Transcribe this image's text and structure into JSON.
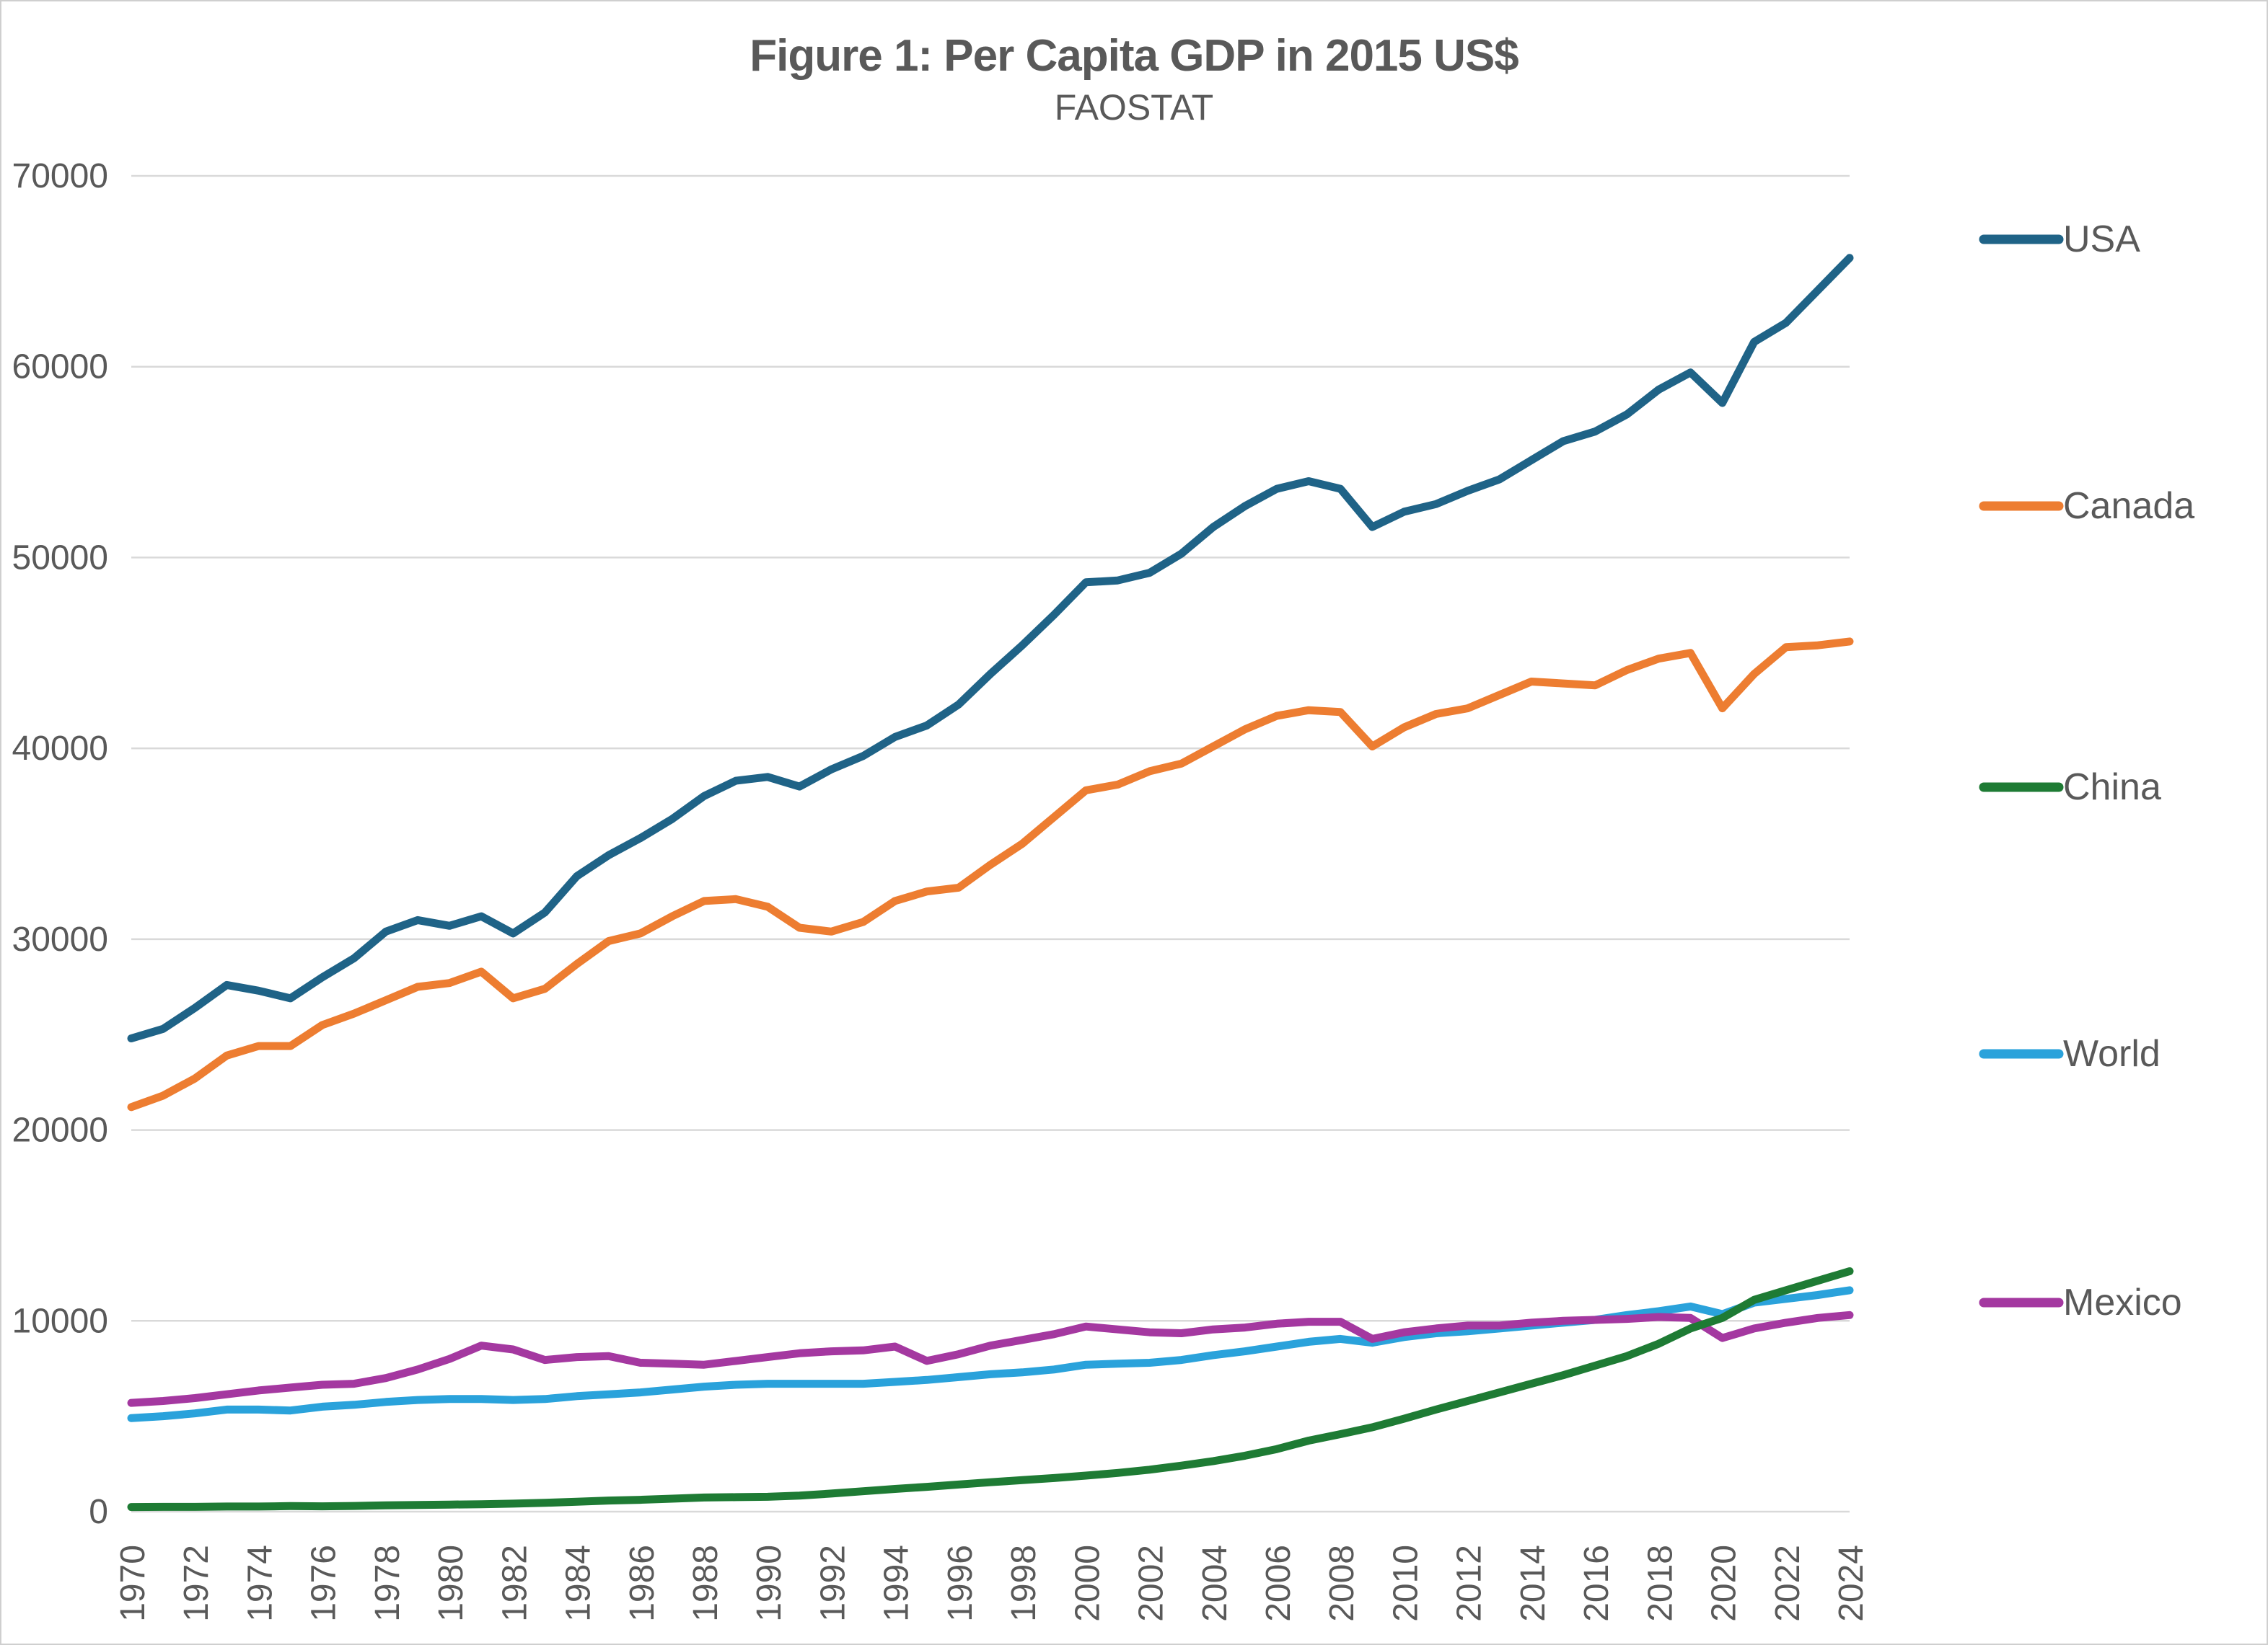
{
  "title": "Figure 1: Per Capita GDP in 2015 US$",
  "subtitle": "FAOSTAT",
  "text_color": "#595959",
  "gridline_color": "#d9d9d9",
  "chart_data": {
    "type": "line",
    "title": "Figure 1: Per Capita GDP in 2015 US$",
    "subtitle": "FAOSTAT",
    "xlabel": "",
    "ylabel": "",
    "ylim": [
      0,
      70000
    ],
    "y_ticks": [
      0,
      10000,
      20000,
      30000,
      40000,
      50000,
      60000,
      70000
    ],
    "x_tick_step": 2,
    "grid": "horizontal",
    "legend_position": "right",
    "x": [
      1970,
      1971,
      1972,
      1973,
      1974,
      1975,
      1976,
      1977,
      1978,
      1979,
      1980,
      1981,
      1982,
      1983,
      1984,
      1985,
      1986,
      1987,
      1988,
      1989,
      1990,
      1991,
      1992,
      1993,
      1994,
      1995,
      1996,
      1997,
      1998,
      1999,
      2000,
      2001,
      2002,
      2003,
      2004,
      2005,
      2006,
      2007,
      2008,
      2009,
      2010,
      2011,
      2012,
      2013,
      2014,
      2015,
      2016,
      2017,
      2018,
      2019,
      2020,
      2021,
      2022,
      2023,
      2024
    ],
    "series": [
      {
        "name": "USA",
        "color": "#1f6387",
        "values": [
          24800,
          25300,
          26400,
          27600,
          27300,
          26900,
          28000,
          29000,
          30400,
          31000,
          30700,
          31200,
          30300,
          31400,
          33300,
          34400,
          35300,
          36300,
          37500,
          38300,
          38500,
          38000,
          38900,
          39600,
          40600,
          41200,
          42300,
          43900,
          45400,
          47000,
          48700,
          48800,
          49200,
          50200,
          51600,
          52700,
          53600,
          54000,
          53600,
          51600,
          52400,
          52800,
          53500,
          54100,
          55100,
          56100,
          56600,
          57500,
          58800,
          59700,
          58100,
          61300,
          62300,
          64000,
          65700
        ]
      },
      {
        "name": "Canada",
        "color": "#ed7d31",
        "values": [
          21200,
          21800,
          22700,
          23900,
          24400,
          24400,
          25500,
          26100,
          26800,
          27500,
          27700,
          28300,
          26900,
          27400,
          28700,
          29900,
          30300,
          31200,
          32000,
          32100,
          31700,
          30600,
          30400,
          30900,
          32000,
          32500,
          32700,
          33900,
          35000,
          36400,
          37800,
          38100,
          38800,
          39200,
          40100,
          41000,
          41700,
          42000,
          41900,
          40100,
          41100,
          41800,
          42100,
          42800,
          43500,
          43400,
          43300,
          44100,
          44700,
          45000,
          42100,
          43900,
          45300,
          45400,
          45600
        ]
      },
      {
        "name": "China",
        "color": "#1e7b34",
        "values": [
          240,
          250,
          250,
          270,
          270,
          290,
          280,
          300,
          330,
          350,
          370,
          390,
          420,
          460,
          520,
          580,
          620,
          680,
          740,
          760,
          780,
          840,
          950,
          1070,
          1190,
          1300,
          1420,
          1540,
          1650,
          1760,
          1890,
          2030,
          2200,
          2410,
          2650,
          2930,
          3280,
          3720,
          4060,
          4420,
          4870,
          5350,
          5800,
          6250,
          6700,
          7150,
          7650,
          8150,
          8800,
          9600,
          10150,
          11100,
          11600,
          12100,
          12600
        ]
      },
      {
        "name": "World",
        "color": "#2aa2db",
        "values": [
          4900,
          5000,
          5150,
          5350,
          5350,
          5300,
          5500,
          5600,
          5750,
          5850,
          5900,
          5900,
          5850,
          5900,
          6050,
          6150,
          6250,
          6400,
          6550,
          6650,
          6700,
          6700,
          6700,
          6700,
          6800,
          6900,
          7050,
          7200,
          7300,
          7450,
          7700,
          7750,
          7800,
          7950,
          8200,
          8400,
          8650,
          8900,
          9050,
          8850,
          9150,
          9350,
          9450,
          9600,
          9750,
          9900,
          10050,
          10300,
          10500,
          10750,
          10350,
          10950,
          11150,
          11350,
          11600
        ]
      },
      {
        "name": "Mexico",
        "color": "#a438a0",
        "values": [
          5700,
          5800,
          5950,
          6150,
          6350,
          6500,
          6650,
          6700,
          7000,
          7450,
          8000,
          8700,
          8500,
          7950,
          8100,
          8150,
          7800,
          7750,
          7700,
          7900,
          8100,
          8300,
          8400,
          8450,
          8650,
          7900,
          8250,
          8700,
          9000,
          9300,
          9700,
          9550,
          9400,
          9350,
          9550,
          9650,
          9850,
          9950,
          9950,
          9050,
          9400,
          9600,
          9750,
          9750,
          9900,
          10000,
          10050,
          10100,
          10200,
          10150,
          9100,
          9600,
          9900,
          10150,
          10300
        ]
      }
    ]
  }
}
